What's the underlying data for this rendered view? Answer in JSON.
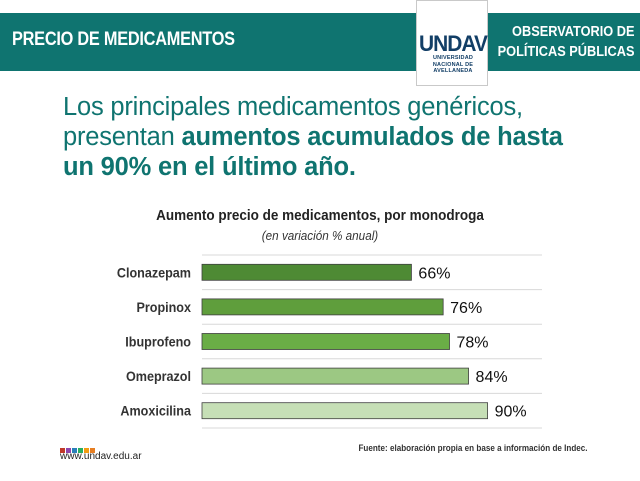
{
  "header": {
    "title": "PRECIO DE MEDICAMENTOS",
    "observatory_line1": "OBSERVATORIO DE",
    "observatory_line2": "POLÍTICAS PÚBLICAS",
    "bar_color": "#0f7470"
  },
  "logo": {
    "word": "UNDAV",
    "line1": "UNIVERSIDAD",
    "line2": "NACIONAL DE",
    "line3": "AVELLANEDA",
    "color": "#123e66"
  },
  "headline": {
    "part1": "Los principales medicamentos genéricos,",
    "part2": "presentan ",
    "bold1": "aumentos acumulados de hasta",
    "bold2": "un 90% en el último año."
  },
  "chart_data": {
    "type": "bar",
    "orientation": "horizontal",
    "title": "Aumento precio de medicamentos, por monodroga",
    "subtitle": "(en variación % anual)",
    "categories": [
      "Clonazepam",
      "Propinox",
      "Ibuprofeno",
      "Omeprazol",
      "Amoxicilina"
    ],
    "values": [
      66,
      76,
      78,
      84,
      90
    ],
    "data_labels": [
      "66%",
      "76%",
      "78%",
      "84%",
      "90%"
    ],
    "bar_colors": [
      "#4e8a34",
      "#5f9e3c",
      "#6aad46",
      "#9cc883",
      "#c6dfb6"
    ],
    "xlim": [
      0,
      100
    ],
    "grid": true
  },
  "footer": {
    "url": "www.undav.edu.ar",
    "source": "Fuente: elaboración propia en base a información de Indec.",
    "dot_colors": [
      "#c0392b",
      "#8e44ad",
      "#2980b9",
      "#27ae60",
      "#f39c12",
      "#e67e22"
    ]
  }
}
